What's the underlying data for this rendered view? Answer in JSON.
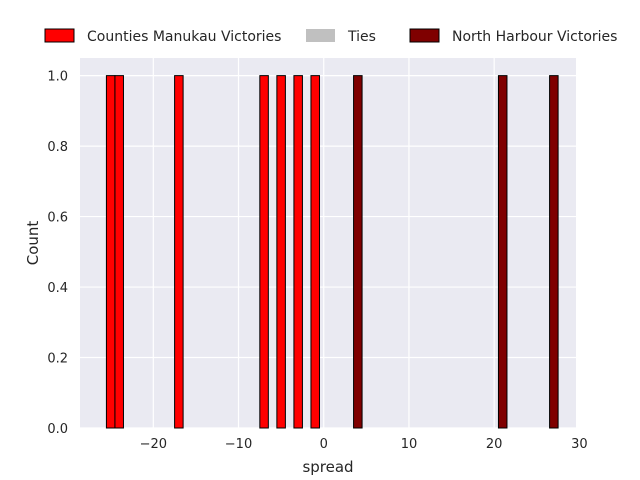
{
  "chart_data": {
    "type": "bar",
    "xlabel": "spread",
    "ylabel": "Count",
    "xlim": [
      -28.6,
      29.6
    ],
    "ylim": [
      0,
      1.05
    ],
    "xticks": [
      -20,
      -10,
      0,
      10,
      20,
      30
    ],
    "yticks": [
      0.0,
      0.2,
      0.4,
      0.6,
      0.8,
      1.0
    ],
    "xtick_labels": [
      "−20",
      "−10",
      "0",
      "10",
      "20",
      "30"
    ],
    "ytick_labels": [
      "0.0",
      "0.2",
      "0.4",
      "0.6",
      "0.8",
      "1.0"
    ],
    "grid": true,
    "legend_position": "top",
    "bin_width": 1,
    "series": [
      {
        "name": "Counties Manukau Victories",
        "color": "#ff0000",
        "x": [
          -25,
          -24,
          -17,
          -7,
          -5,
          -3,
          -1
        ],
        "values": [
          1,
          1,
          1,
          1,
          1,
          1,
          1
        ]
      },
      {
        "name": "Ties",
        "color": "#c0c0c0",
        "x": [],
        "values": []
      },
      {
        "name": "North Harbour Victories",
        "color": "#7f0000",
        "x": [
          4,
          21,
          27
        ],
        "values": [
          1,
          1,
          1
        ]
      }
    ]
  }
}
